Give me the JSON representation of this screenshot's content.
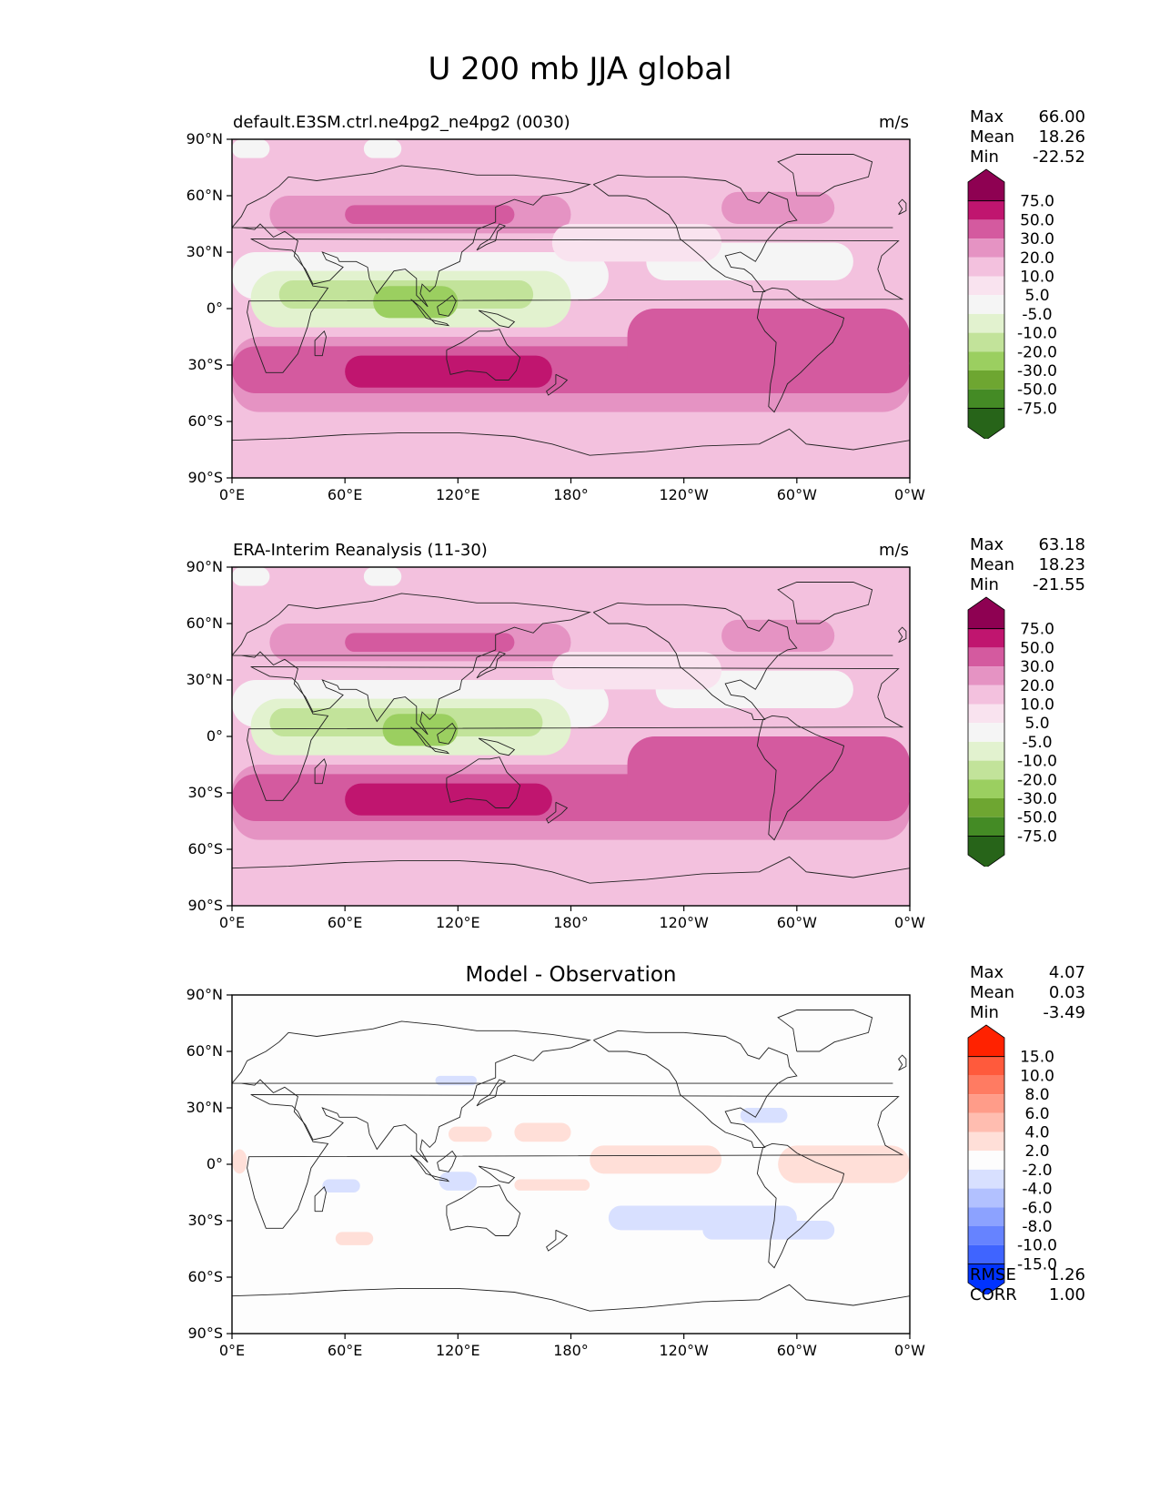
{
  "title": "U 200 mb JJA global",
  "x_ticks": [
    "0°E",
    "60°E",
    "120°E",
    "180°",
    "120°W",
    "60°W",
    "0°W"
  ],
  "y_ticks": [
    "90°N",
    "60°N",
    "30°N",
    "0°",
    "30°S",
    "60°S",
    "90°S"
  ],
  "panels": [
    {
      "title_left": "default.E3SM.ctrl.ne4pg2_ne4pg2 (0030)",
      "title_center": "",
      "units": "m/s",
      "stats": [
        {
          "label": "Max",
          "value": "66.00"
        },
        {
          "label": "Mean",
          "value": "18.26"
        },
        {
          "label": "Min",
          "value": "-22.52"
        }
      ],
      "colorbar": "wind",
      "field": "model",
      "footer": []
    },
    {
      "title_left": "ERA-Interim Reanalysis (11-30)",
      "title_center": "",
      "units": "m/s",
      "stats": [
        {
          "label": "Max",
          "value": "63.18"
        },
        {
          "label": "Mean",
          "value": "18.23"
        },
        {
          "label": "Min",
          "value": "-21.55"
        }
      ],
      "colorbar": "wind",
      "field": "obs",
      "footer": []
    },
    {
      "title_left": "",
      "title_center": "Model - Observation",
      "units": "",
      "stats": [
        {
          "label": "Max",
          "value": "4.07"
        },
        {
          "label": "Mean",
          "value": "0.03"
        },
        {
          "label": "Min",
          "value": "-3.49"
        }
      ],
      "colorbar": "diff",
      "field": "diff",
      "footer": [
        {
          "label": "RMSE",
          "value": "1.26"
        },
        {
          "label": "CORR",
          "value": "1.00"
        }
      ]
    }
  ],
  "colorbars": {
    "wind": {
      "labels": [
        "75.0",
        "50.0",
        "30.0",
        "20.0",
        "10.0",
        "5.0",
        "-5.0",
        "-10.0",
        "-20.0",
        "-30.0",
        "-50.0",
        "-75.0"
      ],
      "colors": [
        "#8e0152",
        "#c0156f",
        "#d45a9f",
        "#e593c3",
        "#f3c1de",
        "#f9e3ef",
        "#f5f5f5",
        "#e2f2cf",
        "#c2e39a",
        "#9bcf60",
        "#6ea631",
        "#448b25",
        "#276419"
      ]
    },
    "diff": {
      "labels": [
        "15.0",
        "10.0",
        "8.0",
        "6.0",
        "4.0",
        "2.0",
        "-2.0",
        "-4.0",
        "-6.0",
        "-8.0",
        "-10.0",
        "-15.0"
      ],
      "colors": [
        "#ff2200",
        "#ff5a3c",
        "#ff7b62",
        "#ff9c89",
        "#ffbdb0",
        "#ffdfd8",
        "#fdfdfd",
        "#d8e0ff",
        "#b2c1ff",
        "#8ca2ff",
        "#6683ff",
        "#3f64ff",
        "#0033ff"
      ]
    }
  },
  "chart_data": {
    "type": "heatmap",
    "projection": "PlateCarree",
    "lon_range": [
      0,
      360
    ],
    "lat_range": [
      -90,
      90
    ],
    "variable": "U 200 mb JJA",
    "units": "m/s",
    "levels": [
      -75,
      -50,
      -30,
      -20,
      -10,
      -5,
      5,
      10,
      20,
      30,
      50,
      75
    ],
    "diff_levels": [
      -15,
      -10,
      -8,
      -6,
      -4,
      -2,
      2,
      4,
      6,
      8,
      10,
      15
    ],
    "features": {
      "subtropical_jet_SH": {
        "lon": [
          60,
          160
        ],
        "lat": [
          -40,
          -25
        ],
        "value_range": [
          50,
          75
        ]
      },
      "easterlies_tropics_indian_ocean": {
        "lon": [
          20,
          150
        ],
        "lat": [
          -5,
          20
        ],
        "value_range": [
          -30,
          -10
        ]
      },
      "diff_positive_eastern_pacific": {
        "lon": [
          230,
          260
        ],
        "lat": [
          -5,
          10
        ],
        "value_range": [
          2,
          4
        ]
      },
      "diff_negative_south_pacific": {
        "lon": [
          240,
          300
        ],
        "lat": [
          -35,
          -20
        ],
        "value_range": [
          -4,
          -2
        ]
      }
    }
  }
}
